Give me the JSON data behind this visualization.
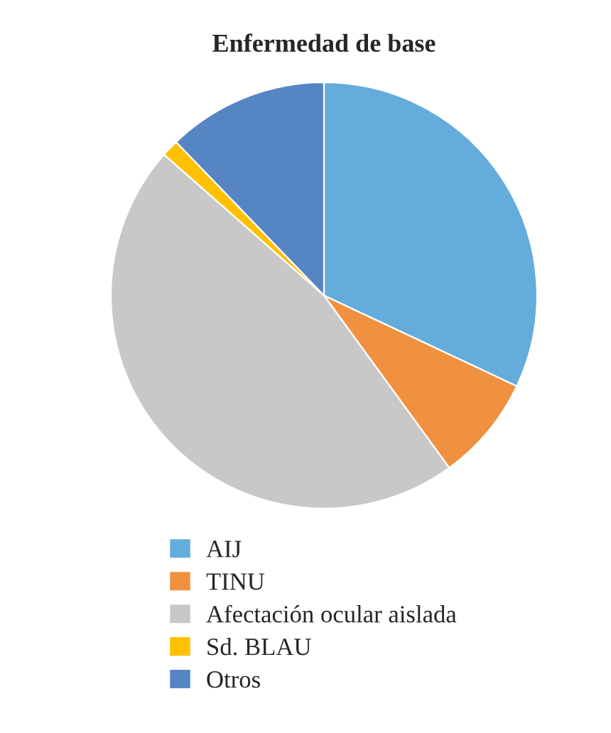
{
  "chart_data": {
    "type": "pie",
    "title": "Enfermedad de base",
    "categories": [
      "AIJ",
      "TINU",
      "Afectación ocular aislada",
      "Sd. BLAU",
      "Otros"
    ],
    "values": [
      32,
      8,
      46.5,
      1.3,
      12.2
    ],
    "colors": [
      "#64acdc",
      "#f0913f",
      "#c8c8c8",
      "#ffc000",
      "#5685c4"
    ],
    "legend": "bottom"
  }
}
